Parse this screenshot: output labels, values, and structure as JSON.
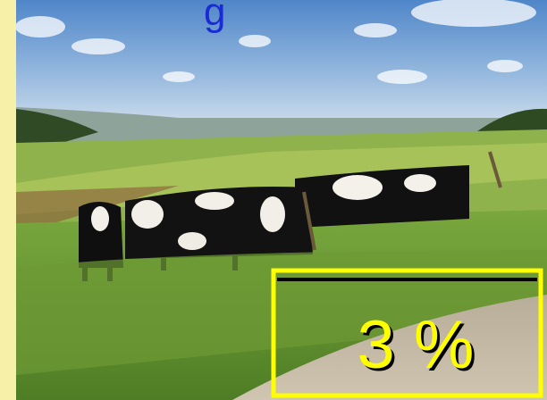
{
  "photo": {
    "caption": "g"
  },
  "overlay": {
    "label": "3 %"
  }
}
